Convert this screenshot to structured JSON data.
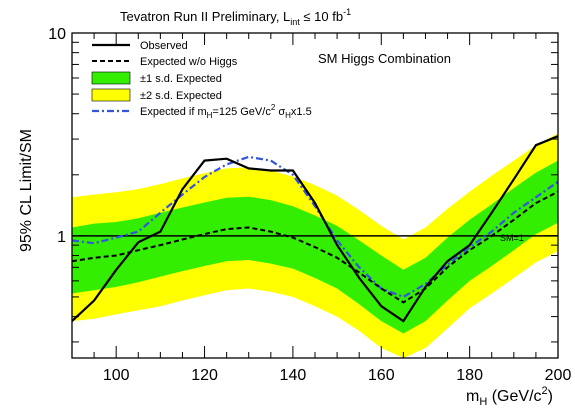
{
  "chart_data": {
    "type": "line",
    "title": "Tevatron Run II Preliminary, L",
    "title_sub": "int",
    "title_tail": " ≤ 10 fb",
    "title_sup": "-1",
    "inner_label": "SM Higgs Combination",
    "xlabel": "m",
    "xlabel_sub": "H",
    "xlabel_tail": " (GeV/c",
    "xlabel_sup": "2",
    "xlabel_end": ")",
    "ylabel": "95% CL Limit/SM",
    "xlim": [
      90,
      200
    ],
    "ylim": [
      0.25,
      10
    ],
    "yscale": "log",
    "x_ticks": [
      "100",
      "120",
      "140",
      "160",
      "180",
      "200"
    ],
    "y_ticks": [
      "1",
      "10"
    ],
    "sm_line_label": "SM=1",
    "grid": false,
    "legend_position": "top-left",
    "legend": [
      {
        "label": "Observed",
        "style": "solid"
      },
      {
        "label": "Expected w/o Higgs",
        "style": "dashed"
      },
      {
        "label": "±1 s.d. Expected",
        "style": "band-green"
      },
      {
        "label": "±2 s.d. Expected",
        "style": "band-yellow"
      },
      {
        "label": "Expected if m",
        "sub1": "H",
        "mid": "=125 GeV/c",
        "sup": "2",
        "mid2": " σ",
        "sub2": "H",
        "tail": "x1.5",
        "style": "dash-dot-blue"
      }
    ],
    "colors": {
      "green_band": "#33ee00",
      "yellow_band": "#ffff00",
      "observed": "#000000",
      "expected": "#000000",
      "injected": "#3355dd"
    },
    "x": [
      90,
      95,
      100,
      105,
      110,
      115,
      120,
      125,
      130,
      135,
      140,
      145,
      150,
      155,
      160,
      165,
      170,
      175,
      180,
      185,
      190,
      195,
      200
    ],
    "series": [
      {
        "name": "Observed",
        "values": [
          0.38,
          0.48,
          0.68,
          0.93,
          1.05,
          1.7,
          2.35,
          2.4,
          2.15,
          2.1,
          2.1,
          1.45,
          0.9,
          0.62,
          0.45,
          0.38,
          0.56,
          0.75,
          0.9,
          1.3,
          1.9,
          2.8,
          3.1
        ]
      },
      {
        "name": "Expected w/o Higgs",
        "values": [
          0.75,
          0.78,
          0.8,
          0.85,
          0.9,
          0.96,
          1.02,
          1.08,
          1.1,
          1.05,
          0.98,
          0.88,
          0.78,
          0.66,
          0.55,
          0.47,
          0.55,
          0.7,
          0.85,
          1.0,
          1.2,
          1.45,
          1.65
        ]
      },
      {
        "name": "Expected if mH=125 GeV/c2 σHx1.5",
        "values": [
          0.95,
          0.92,
          0.98,
          1.05,
          1.3,
          1.6,
          1.95,
          2.25,
          2.45,
          2.35,
          2.0,
          1.4,
          0.95,
          0.7,
          0.55,
          0.5,
          0.58,
          0.72,
          0.88,
          1.05,
          1.3,
          1.55,
          1.85
        ]
      },
      {
        "name": "+1 s.d.",
        "values": [
          1.1,
          1.15,
          1.17,
          1.22,
          1.3,
          1.38,
          1.46,
          1.54,
          1.56,
          1.5,
          1.4,
          1.26,
          1.12,
          0.95,
          0.8,
          0.68,
          0.78,
          0.98,
          1.2,
          1.43,
          1.72,
          2.05,
          2.35
        ]
      },
      {
        "name": "-1 s.d.",
        "values": [
          0.52,
          0.54,
          0.56,
          0.59,
          0.63,
          0.67,
          0.71,
          0.75,
          0.76,
          0.73,
          0.69,
          0.62,
          0.55,
          0.46,
          0.38,
          0.33,
          0.38,
          0.48,
          0.6,
          0.71,
          0.85,
          1.02,
          1.16
        ]
      },
      {
        "name": "+2 s.d.",
        "values": [
          1.55,
          1.6,
          1.64,
          1.7,
          1.8,
          1.92,
          2.04,
          2.15,
          2.18,
          2.1,
          1.96,
          1.78,
          1.58,
          1.34,
          1.12,
          0.96,
          1.1,
          1.36,
          1.65,
          1.98,
          2.35,
          2.8,
          3.2
        ]
      },
      {
        "name": "-2 s.d.",
        "values": [
          0.38,
          0.39,
          0.41,
          0.43,
          0.45,
          0.48,
          0.51,
          0.54,
          0.55,
          0.53,
          0.5,
          0.45,
          0.4,
          0.34,
          0.28,
          0.25,
          0.28,
          0.35,
          0.44,
          0.52,
          0.62,
          0.74,
          0.84
        ]
      }
    ]
  }
}
